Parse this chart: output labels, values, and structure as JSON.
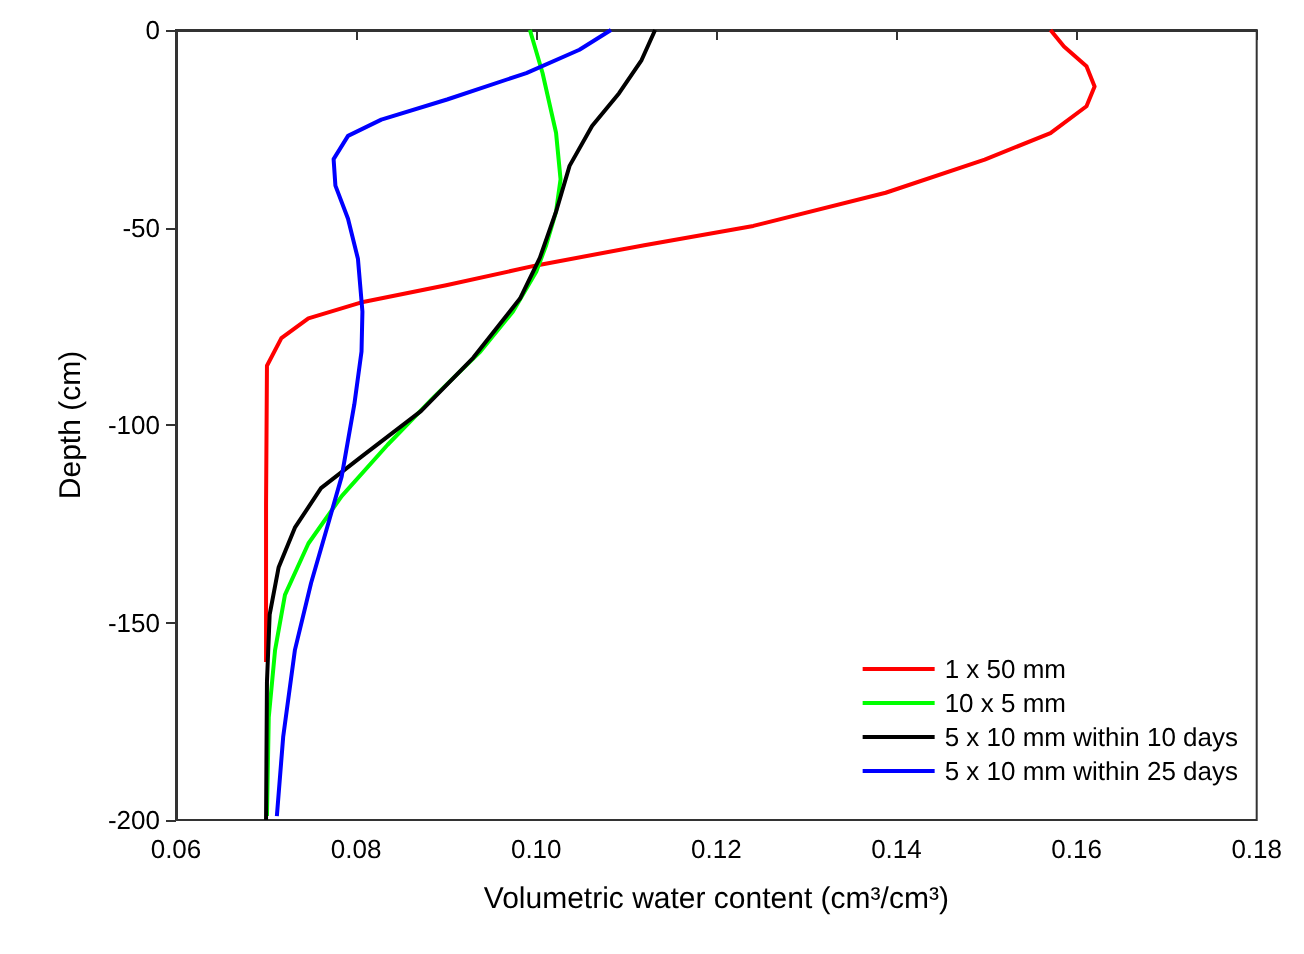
{
  "chart_data": {
    "type": "line",
    "xlabel": "Volumetric water content (cm³/cm³)",
    "ylabel": "Depth (cm)",
    "xlim": [
      0.06,
      0.18
    ],
    "xticks": [
      0.06,
      0.08,
      {
        "value": 0.1,
        "label": "0.10"
      },
      0.12,
      0.14,
      0.16,
      0.18
    ],
    "ylim": [
      -200,
      0
    ],
    "yticks": [
      -200,
      -150,
      -100,
      -50,
      0
    ],
    "grid": false,
    "legend": "bottom right",
    "marker": "none",
    "line_style": "solid",
    "series": [
      {
        "name": "1 x 50 mm",
        "color": "#ff0000",
        "x": [
          0.07,
          0.07,
          0.0701,
          0.0717,
          0.0747,
          0.0805,
          0.09,
          0.1,
          0.112,
          0.1241,
          0.1388,
          0.1498,
          0.1571,
          0.1611,
          0.162,
          0.1611,
          0.1586,
          0.1571
        ],
        "values": [
          -160,
          -120,
          -85,
          -78,
          -73,
          -69,
          -64.6,
          -59.6,
          -54.5,
          -49.6,
          -41.2,
          -32.8,
          -26.1,
          -19.3,
          -14.3,
          -9.2,
          -4.2,
          0
        ]
      },
      {
        "name": "10 x 5 mm",
        "color": "#00ff00",
        "x": [
          0.0993,
          0.1007,
          0.1022,
          0.1027,
          0.1022,
          0.1011,
          0.1,
          0.0974,
          0.0938,
          0.0886,
          0.0835,
          0.0784,
          0.0747,
          0.0721,
          0.071,
          0.0703,
          0.0701
        ],
        "values": [
          0,
          -10.9,
          -26,
          -37.8,
          -46,
          -54.5,
          -61.2,
          -71.3,
          -81.4,
          -93,
          -105,
          -118,
          -130,
          -143,
          -157,
          -174,
          -199
        ]
      },
      {
        "name": "5 x 10 mm within 10 days",
        "color": "#000000",
        "x": [
          0.1132,
          0.1117,
          0.1092,
          0.1062,
          0.1037,
          0.1022,
          0.1004,
          0.0982,
          0.093,
          0.0872,
          0.0806,
          0.0761,
          0.0732,
          0.0714,
          0.0704,
          0.0701,
          0.07
        ],
        "values": [
          0,
          -7.6,
          -16,
          -24.3,
          -34.4,
          -46,
          -57.7,
          -68,
          -83,
          -96.5,
          -108,
          -116,
          -126,
          -136,
          -148,
          -165,
          -200
        ]
      },
      {
        "name": "5 x 10 mm within 25 days",
        "color": "#0000ff",
        "x": [
          0.1083,
          0.1048,
          0.0989,
          0.0901,
          0.0828,
          0.0791,
          0.0775,
          0.0777,
          0.0791,
          0.0802,
          0.0807,
          0.0806,
          0.0798,
          0.0784,
          0.0769,
          0.075,
          0.0732,
          0.0719,
          0.0712
        ],
        "values": [
          0,
          -5,
          -10.9,
          -17.6,
          -22.7,
          -26.8,
          -32.7,
          -39.4,
          -47.8,
          -57.9,
          -71.3,
          -81.4,
          -94.8,
          -113,
          -125,
          -140,
          -157,
          -179,
          -199
        ]
      }
    ]
  }
}
